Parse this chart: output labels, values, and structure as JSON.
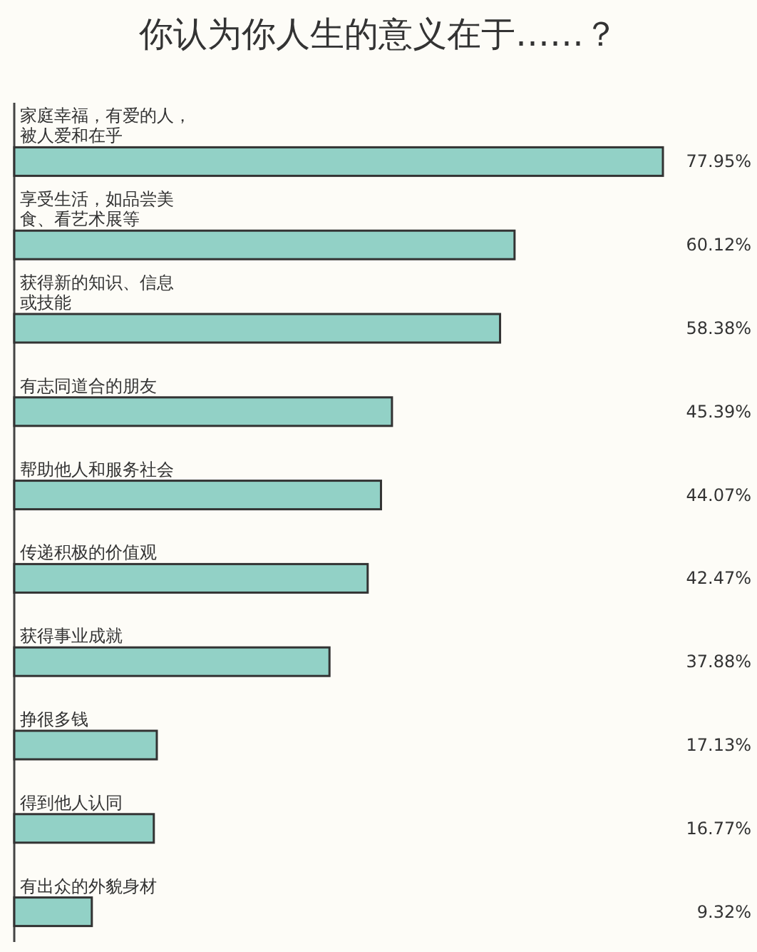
{
  "chart_data": {
    "type": "bar",
    "orientation": "horizontal",
    "title": "你认为你人生的意义在于……？",
    "categories": [
      "家庭幸福，有爱的人，被人爱和在乎",
      "享受生活，如品尝美食、看艺术展等",
      "获得新的知识、信息或技能",
      "有志同道合的朋友",
      "帮助他人和服务社会",
      "传递积极的价值观",
      "获得事业成就",
      "挣很多钱",
      "得到他人认同",
      "有出众的外貌身材"
    ],
    "values": [
      77.95,
      60.12,
      58.38,
      45.39,
      44.07,
      42.47,
      37.88,
      17.13,
      16.77,
      9.32
    ],
    "value_labels": [
      "77.95%",
      "60.12%",
      "58.38%",
      "45.39%",
      "44.07%",
      "42.47%",
      "37.88%",
      "17.13%",
      "16.77%",
      "9.32%"
    ],
    "color": "#92d1c6"
  }
}
